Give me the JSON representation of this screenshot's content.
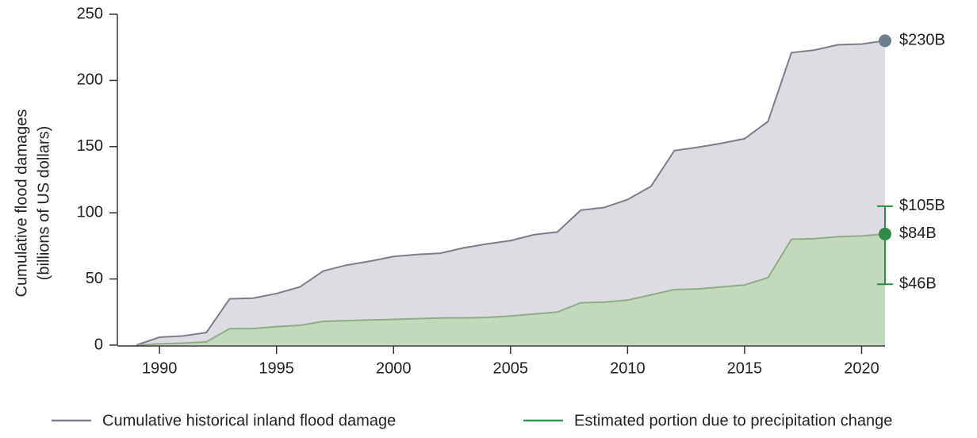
{
  "chart_data": {
    "type": "area",
    "ylabel": [
      "Cumulative flood damages",
      "(billions of US dollars)"
    ],
    "x": [
      1989,
      1990,
      1991,
      1992,
      1993,
      1994,
      1995,
      1996,
      1997,
      1998,
      1999,
      2000,
      2001,
      2002,
      2003,
      2004,
      2005,
      2006,
      2007,
      2008,
      2009,
      2010,
      2011,
      2012,
      2013,
      2014,
      2015,
      2016,
      2017,
      2018,
      2019,
      2020,
      2021
    ],
    "series": [
      {
        "name": "Cumulative historical inland flood damage",
        "color": "#7b7f8c",
        "fill": "#dcdce2",
        "end_color": "#6e7e8e",
        "end_label": "$230B",
        "values": [
          0,
          6,
          7,
          9.5,
          35,
          35.5,
          39,
          44,
          56,
          60.5,
          63.5,
          67,
          68.5,
          69.5,
          73.5,
          76.5,
          79,
          83.5,
          85.5,
          102,
          104,
          110,
          120,
          147,
          149.5,
          152.5,
          156,
          169,
          221,
          223,
          227,
          227.5,
          230
        ]
      },
      {
        "name": "Estimated portion due to precipitation change",
        "color": "#2e9a50",
        "fill": "#c2d9bb",
        "end_color": "#2e8b45",
        "end_label": "$84B",
        "values": [
          0,
          1,
          1.5,
          2.5,
          12.5,
          12.5,
          14,
          15,
          18,
          18.5,
          19,
          19.5,
          20,
          20.5,
          20.5,
          21,
          22,
          23.5,
          25,
          32,
          32.5,
          34,
          38,
          42,
          42.5,
          44,
          45.5,
          51,
          80,
          80.5,
          82,
          82.5,
          84
        ],
        "range": {
          "low": 46,
          "high": 105,
          "low_label": "$46B",
          "high_label": "$105B"
        }
      }
    ],
    "xlim": [
      1988.2,
      2021
    ],
    "xticks": [
      1990,
      1995,
      2000,
      2005,
      2010,
      2015,
      2020
    ],
    "ylim": [
      0,
      250
    ],
    "yticks": [
      0,
      50,
      100,
      150,
      200,
      250
    ],
    "legend": "bottom"
  }
}
